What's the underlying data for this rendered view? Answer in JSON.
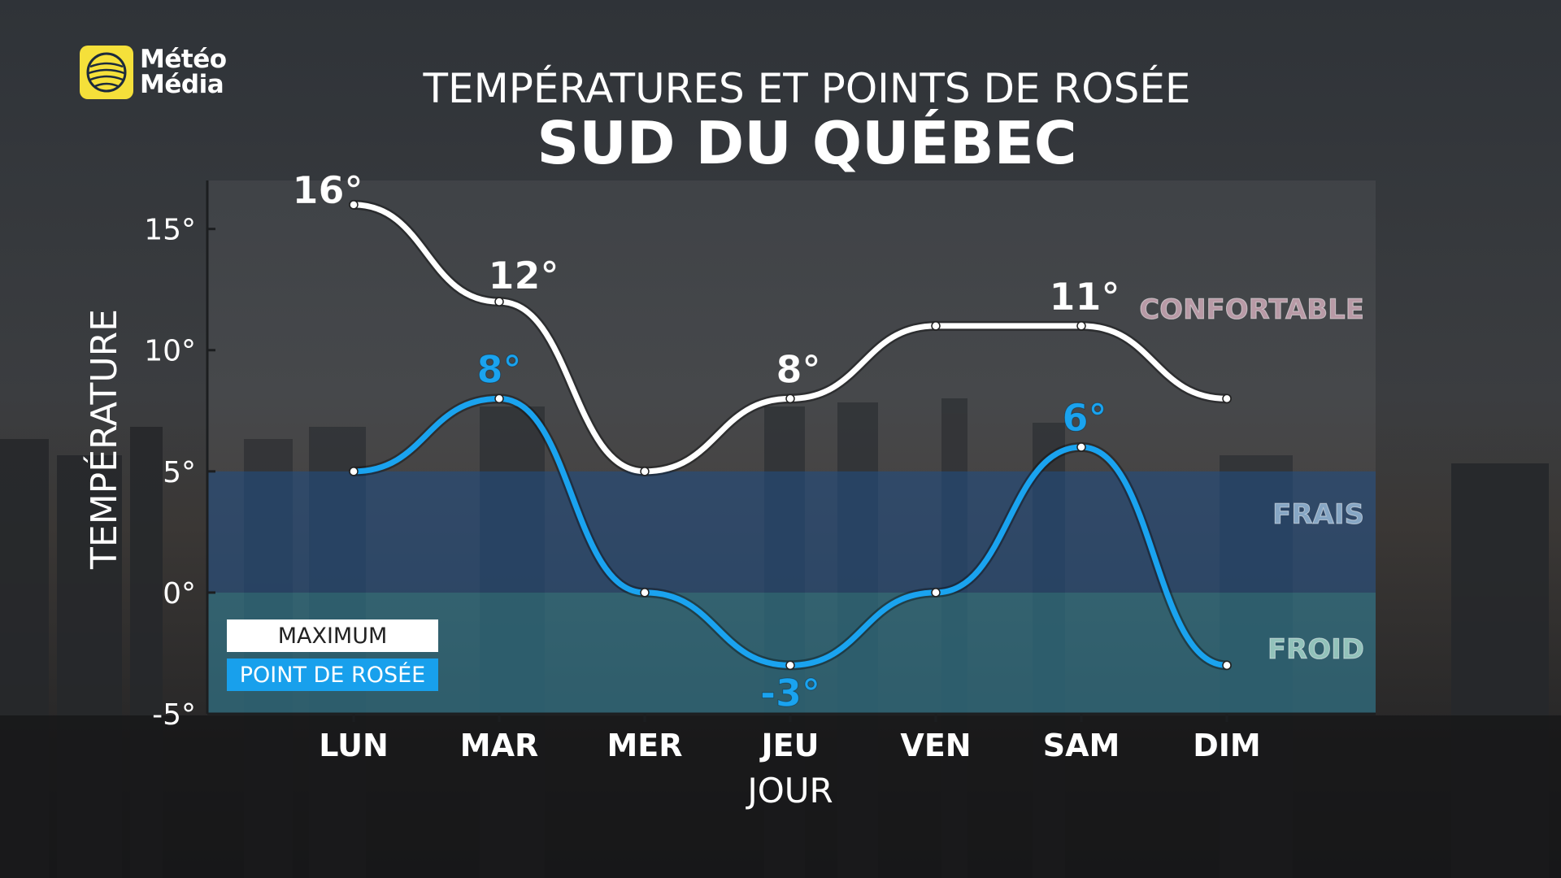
{
  "brand": {
    "line1": "Météo",
    "line2": "Média",
    "color": "#f5e03a"
  },
  "title": "TEMPÉRATURES ET POINTS DE ROSÉE",
  "subtitle": "SUD DU QUÉBEC",
  "legend": {
    "max_label": "MAXIMUM",
    "dew_label": "POINT DE ROSÉE"
  },
  "colors": {
    "max": "#ffffff",
    "dew": "#1aa3ef",
    "frais_zone": "#1f4f86",
    "froid_zone": "#2a7f99"
  },
  "chart_data": {
    "type": "line",
    "title": "TEMPÉRATURES ET POINTS DE ROSÉE",
    "subtitle": "SUD DU QUÉBEC",
    "xlabel": "JOUR",
    "ylabel": "TEMPÉRATURE",
    "categories": [
      "LUN",
      "MAR",
      "MER",
      "JEU",
      "VEN",
      "SAM",
      "DIM"
    ],
    "ylim": [
      -5,
      17
    ],
    "yticks": [
      {
        "value": 15,
        "label": "15°"
      },
      {
        "value": 10,
        "label": "10°"
      },
      {
        "value": 5,
        "label": "5°"
      },
      {
        "value": 0,
        "label": "0°"
      },
      {
        "value": -5,
        "label": "-5°"
      }
    ],
    "series": [
      {
        "name": "MAXIMUM",
        "values": [
          16,
          12,
          5,
          8,
          11,
          11,
          8
        ],
        "labels": [
          "16°",
          "12°",
          "",
          "8°",
          "",
          "11°",
          ""
        ]
      },
      {
        "name": "POINT DE ROSÉE",
        "values": [
          5,
          8,
          0,
          -3,
          0,
          6,
          -3
        ],
        "labels": [
          "",
          "8°",
          "",
          "-3°",
          "",
          "6°",
          ""
        ]
      }
    ],
    "zones": [
      {
        "name": "CONFORTABLE",
        "from": 5,
        "to": 17
      },
      {
        "name": "FRAIS",
        "from": 0,
        "to": 5
      },
      {
        "name": "FROID",
        "from": -5,
        "to": 0
      }
    ],
    "grid": false,
    "legend_position": "bottom-left"
  }
}
